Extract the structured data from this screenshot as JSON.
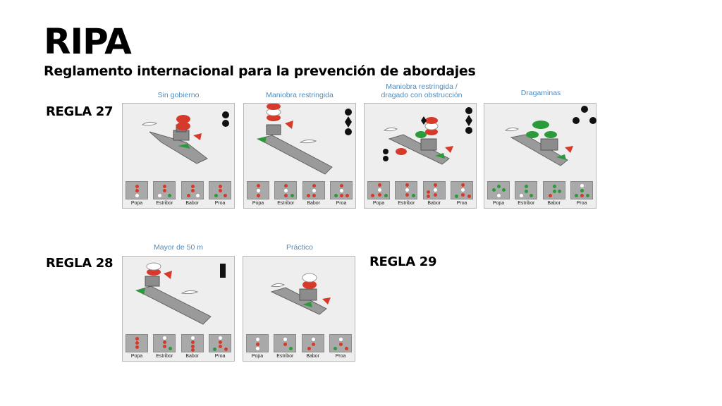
{
  "page": {
    "title": "RIPA",
    "subtitle": "Reglamento internacional para la prevención de abordajes"
  },
  "reglas": [
    {
      "label": "REGLA 27"
    },
    {
      "label": "REGLA 28"
    },
    {
      "label": "REGLA 29"
    }
  ],
  "colors": {
    "caption": "#4d8cc0",
    "red_light": "#d63a2a",
    "green_light": "#2a9a3a",
    "white_light": "#ffffff",
    "hull": "#9a9a9a",
    "card_bg": "#eeeeee",
    "view_bg": "#a9a9a9"
  },
  "cards": [
    {
      "caption": "Sin gobierno",
      "views": [
        "Popa",
        "Estribor",
        "Babor",
        "Proa"
      ],
      "day_signal": "two-black-balls"
    },
    {
      "caption": "Maniobra restringida",
      "views": [
        "Popa",
        "Estribor",
        "Babor",
        "Proa"
      ],
      "day_signal": "ball-diamond-ball"
    },
    {
      "caption_line1": "Maniobra restringida /",
      "caption_line2": "dragado con obstrucción",
      "views": [
        "Popa",
        "Estribor",
        "Babor",
        "Proa"
      ],
      "day_signal": "ball-diamond-ball-plus-side-balls"
    },
    {
      "caption": "Dragaminas",
      "views": [
        "Popa",
        "Estribor",
        "Babor",
        "Proa"
      ],
      "day_signal": "three-black-balls-triangle"
    },
    {
      "caption": "Mayor de 50 m",
      "views": [
        "Popa",
        "Estribor",
        "Babor",
        "Proa"
      ],
      "day_signal": "black-cylinder"
    },
    {
      "caption": "Práctico",
      "views": [
        "Popa",
        "Estribor",
        "Babor",
        "Proa"
      ],
      "day_signal": "none"
    }
  ]
}
